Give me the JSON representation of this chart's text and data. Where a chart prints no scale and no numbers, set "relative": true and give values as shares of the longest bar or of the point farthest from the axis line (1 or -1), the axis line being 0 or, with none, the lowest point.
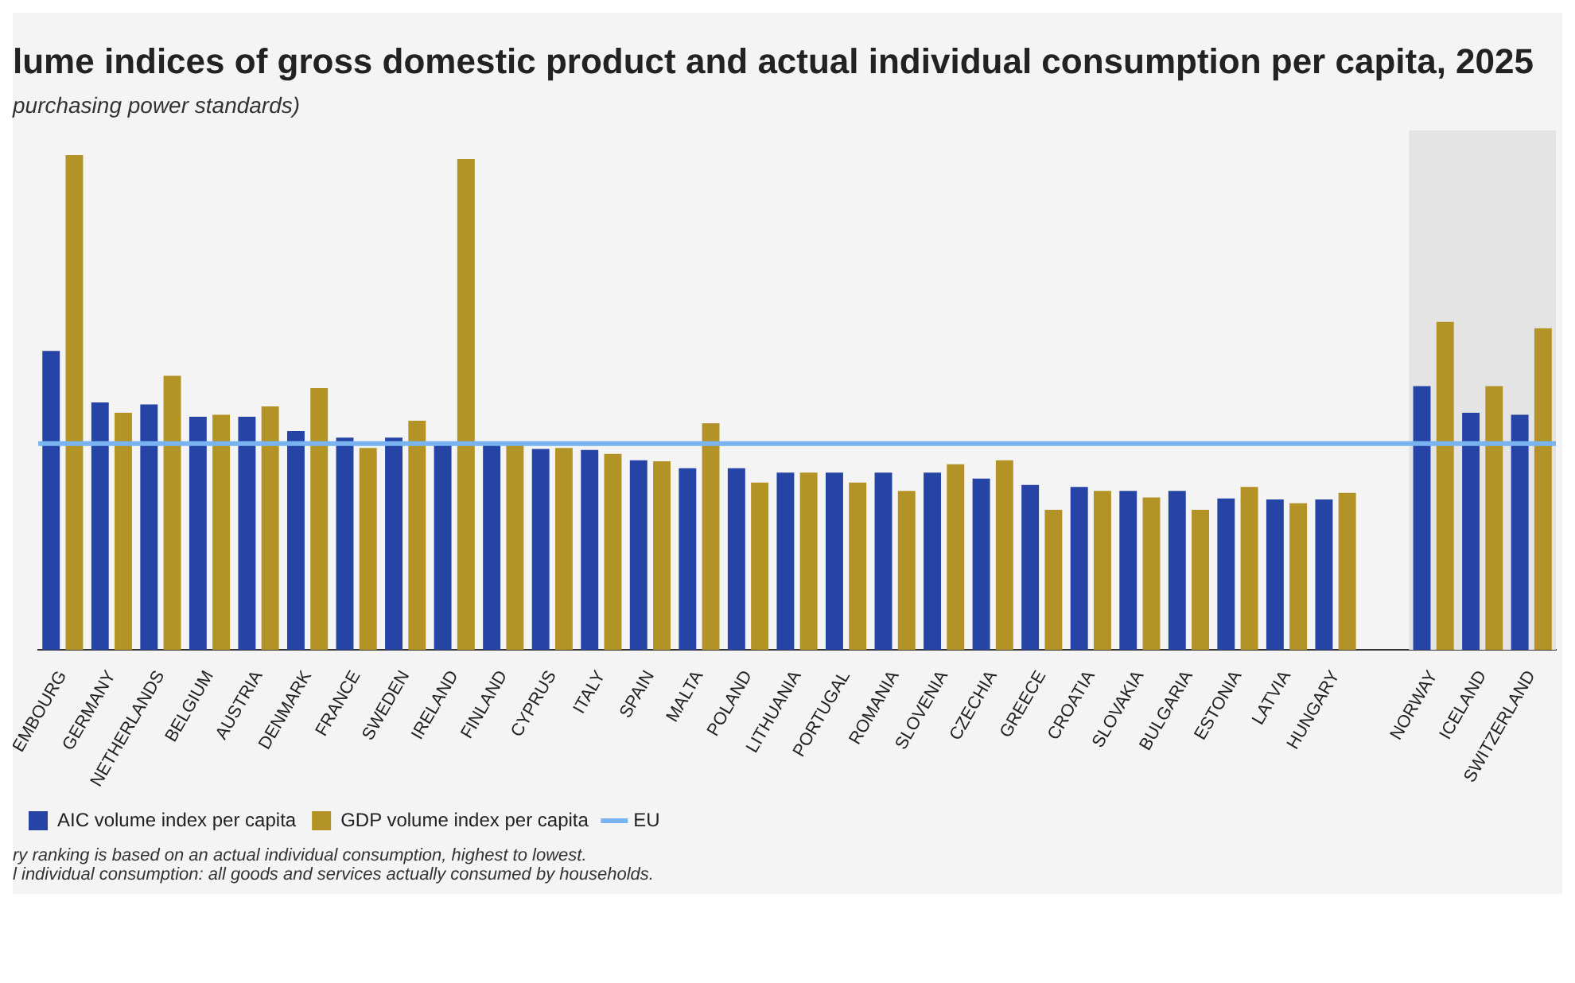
{
  "chart_data": {
    "type": "bar",
    "title": "lume indices of gross domestic product and actual individual consumption per capita, 2025",
    "subtitle": "purchasing power standards)",
    "relative": true,
    "categories": [
      "EMBOURG",
      "GERMANY",
      "NETHERLANDS",
      "BELGIUM",
      "AUSTRIA",
      "DENMARK",
      "FRANCE",
      "SWEDEN",
      "IRELAND",
      "FINLAND",
      "CYPRUS",
      "ITALY",
      "SPAIN",
      "MALTA",
      "POLAND",
      "LITHUANIA",
      "PORTUGAL",
      "ROMANIA",
      "SLOVENIA",
      "CZECHIA",
      "GREECE",
      "CROATIA",
      "SLOVAKIA",
      "BULGARIA",
      "ESTONIA",
      "LATVIA",
      "HUNGARY",
      null,
      "NORWAY",
      "ICELAND",
      "SWITZERLAND"
    ],
    "series": [
      {
        "name": "AIC volume index per capita",
        "color": "#2644a6",
        "values": [
          0.604,
          0.5,
          0.496,
          0.471,
          0.471,
          0.442,
          0.429,
          0.429,
          0.413,
          0.413,
          0.406,
          0.404,
          0.383,
          0.367,
          0.367,
          0.358,
          0.358,
          0.358,
          0.358,
          0.346,
          0.333,
          0.329,
          0.321,
          0.321,
          0.306,
          0.304,
          0.304,
          null,
          0.533,
          0.479,
          0.475
        ]
      },
      {
        "name": "GDP volume index per capita",
        "color": "#b39226",
        "values": [
          1,
          0.479,
          0.554,
          0.475,
          0.492,
          0.529,
          0.408,
          0.463,
          0.992,
          0.413,
          0.408,
          0.396,
          0.381,
          0.458,
          0.338,
          0.358,
          0.338,
          0.321,
          0.375,
          0.383,
          0.283,
          0.321,
          0.308,
          0.283,
          0.329,
          0.296,
          0.317,
          null,
          0.663,
          0.533,
          0.65
        ]
      }
    ],
    "ref_lines": [
      {
        "axis": "y",
        "value": 0.417,
        "label": "EU",
        "color": "#7ab4f0"
      }
    ],
    "bands": [
      {
        "axis": "x",
        "from": "NORWAY",
        "to": "SWITZERLAND",
        "color": "#e4e4e4"
      }
    ],
    "legend": "bottom",
    "annotations": [
      "ry ranking is based on an actual individual consumption, highest to lowest.",
      "l individual consumption: all goods and services actually consumed by households."
    ]
  }
}
